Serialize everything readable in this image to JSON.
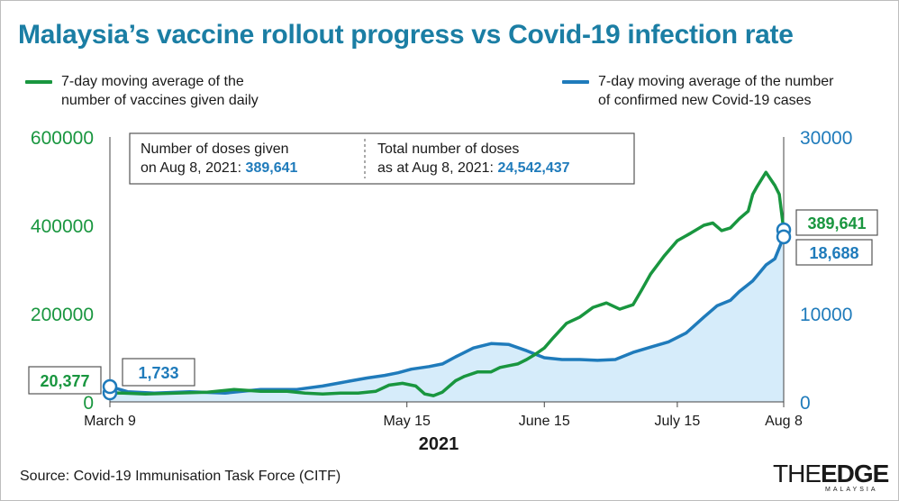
{
  "title": "Malaysia’s vaccine rollout progress vs Covid-19 infection rate",
  "legend": {
    "vaccines": "7-day moving average of the\nnumber of vaccines given daily",
    "cases": "7-day moving average of the number\nof confirmed new Covid-19 cases"
  },
  "info_box": {
    "left_line1": "Number of doses given",
    "left_line2": "on Aug 8, 2021: ",
    "left_value": "389,641",
    "right_line1": "Total number of doses",
    "right_line2": "as at Aug 8, 2021: ",
    "right_value": "24,542,437"
  },
  "callouts": {
    "vaccines_start": "20,377",
    "cases_start": "1,733",
    "vaccines_end": "389,641",
    "cases_end": "18,688"
  },
  "year_label": "2021",
  "source": "Source: Covid-19 Immunisation Task Force (CITF)",
  "logo": {
    "main_the": "THE",
    "main_edge": "EDGE",
    "sub": "MALAYSIA"
  },
  "colors": {
    "title": "#1b7ea4",
    "vaccines": "#19963f",
    "cases": "#1f7bbb",
    "cases_fill": "#d6ecfa"
  },
  "chart_data": {
    "type": "line",
    "x_ticks": [
      "March 9",
      "May 15",
      "June 15",
      "July 15",
      "Aug 8"
    ],
    "x_tick_days": [
      0,
      67,
      98,
      128,
      152
    ],
    "x_range_days": [
      0,
      152
    ],
    "y_left": {
      "ticks": [
        "0",
        "200000",
        "400000",
        "600000"
      ],
      "range": [
        0,
        600000
      ]
    },
    "y_right": {
      "ticks": [
        "0",
        "10000",
        "20000",
        "30000"
      ],
      "range": [
        0,
        30000
      ]
    },
    "grid": false,
    "legend_position": "top",
    "series": [
      {
        "name": "7-day moving average of the number of vaccines given daily",
        "axis": "left",
        "x": [
          0,
          3,
          8,
          15,
          22,
          28,
          34,
          40,
          44,
          48,
          52,
          56,
          60,
          63,
          66,
          69,
          71,
          73,
          75,
          78,
          80,
          83,
          86,
          88,
          90,
          92,
          94,
          96,
          98,
          100,
          103,
          106,
          109,
          112,
          115,
          118,
          120,
          122,
          125,
          128,
          131,
          134,
          136,
          138,
          140,
          142,
          144,
          145,
          146,
          148,
          150,
          151,
          152
        ],
        "y": [
          20377,
          20000,
          18000,
          20000,
          22000,
          28000,
          24000,
          24000,
          20000,
          18000,
          20000,
          20000,
          24000,
          38000,
          42000,
          36000,
          18000,
          14000,
          22000,
          48000,
          58000,
          68000,
          68000,
          78000,
          82000,
          86000,
          96000,
          108000,
          122000,
          145000,
          178000,
          192000,
          214000,
          224000,
          210000,
          220000,
          254000,
          290000,
          330000,
          365000,
          382000,
          400000,
          405000,
          388000,
          394000,
          415000,
          432000,
          470000,
          488000,
          520000,
          490000,
          470000,
          389641
        ]
      },
      {
        "name": "7-day moving average of the number of confirmed new Covid-19 cases",
        "axis": "right",
        "x": [
          0,
          4,
          10,
          18,
          26,
          34,
          42,
          48,
          54,
          58,
          62,
          65,
          68,
          72,
          75,
          78,
          82,
          86,
          90,
          94,
          98,
          102,
          106,
          110,
          114,
          118,
          122,
          126,
          130,
          134,
          137,
          140,
          142,
          145,
          148,
          150,
          152
        ],
        "y": [
          1733,
          1150,
          1000,
          1150,
          1000,
          1400,
          1400,
          1800,
          2350,
          2700,
          3000,
          3300,
          3700,
          4000,
          4300,
          5100,
          6100,
          6600,
          6500,
          5800,
          5000,
          4800,
          4800,
          4700,
          4800,
          5600,
          6200,
          6800,
          7800,
          9600,
          10900,
          11500,
          12500,
          13700,
          15500,
          16200,
          18688
        ]
      }
    ]
  }
}
